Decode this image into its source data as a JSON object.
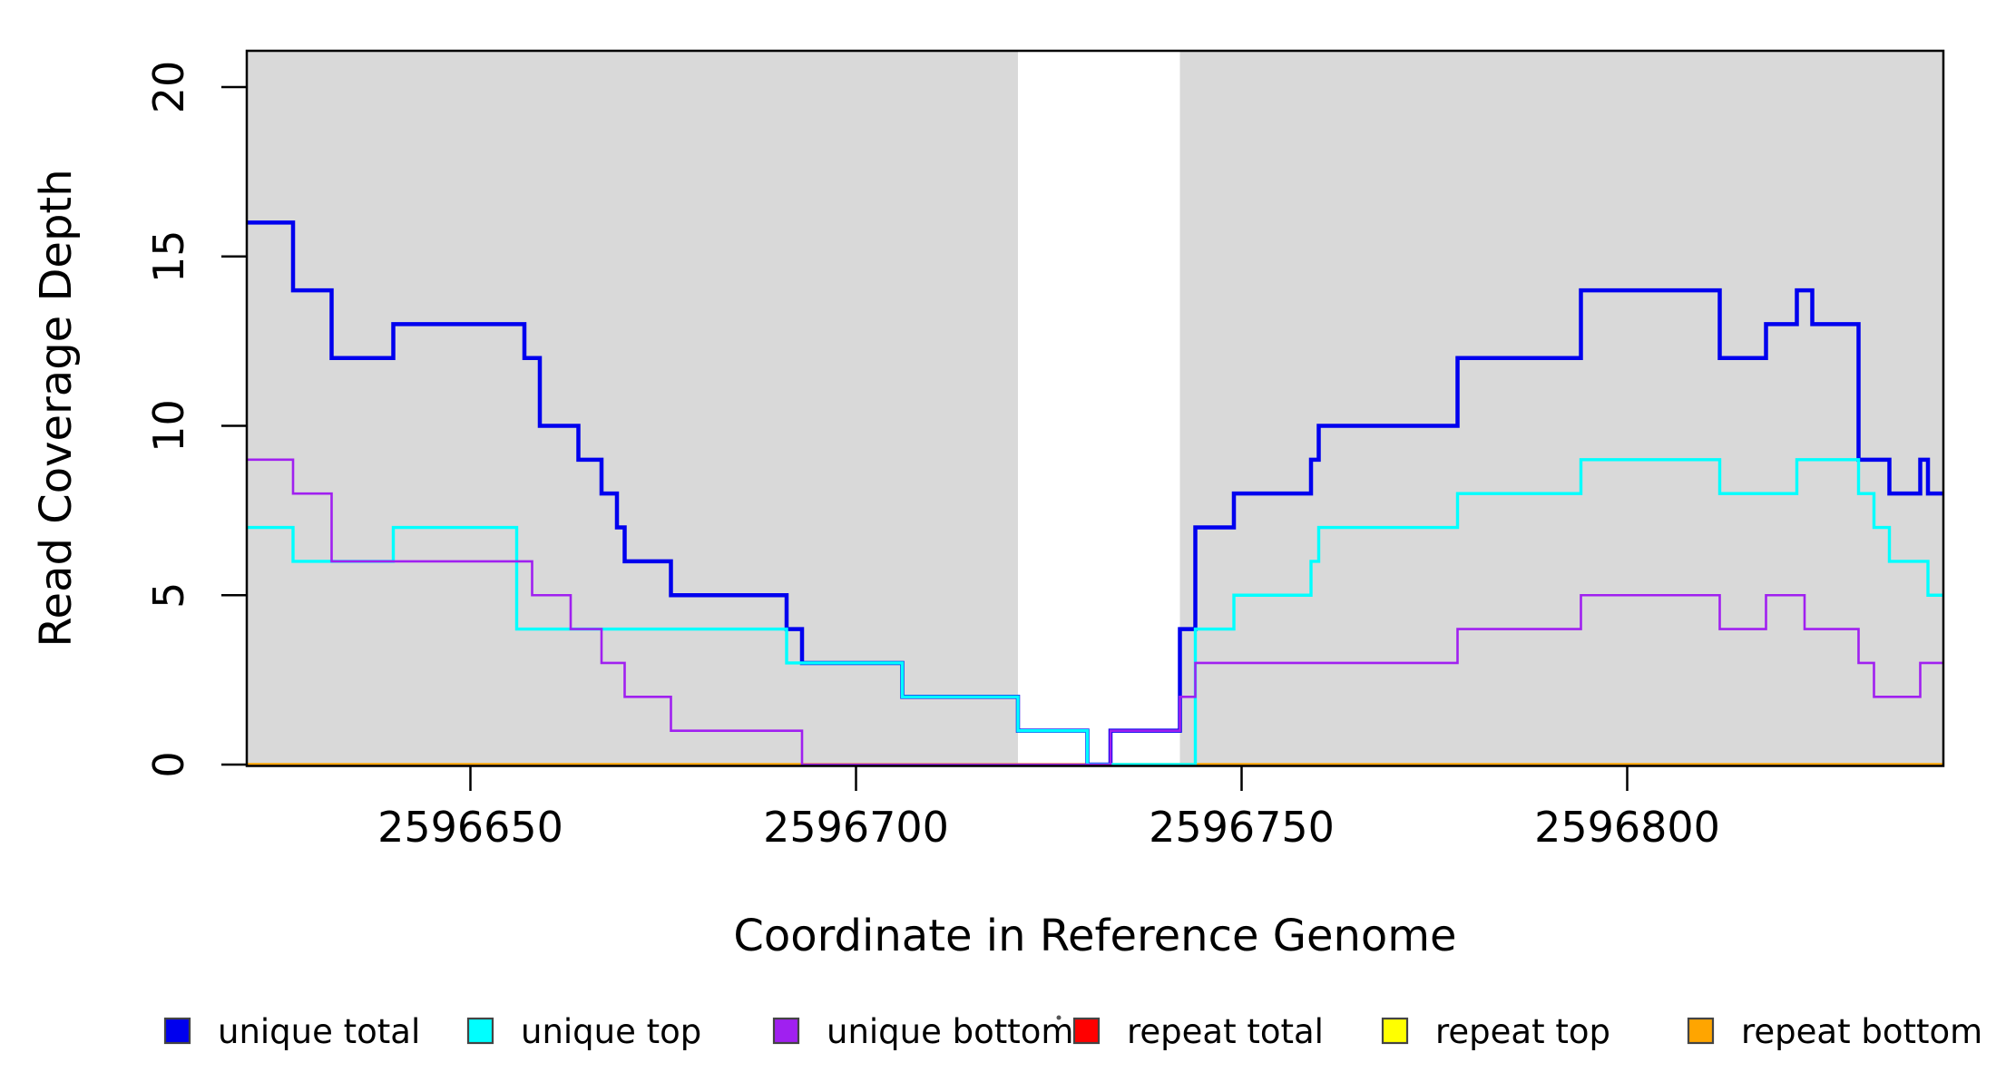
{
  "chart_data": {
    "type": "line",
    "subtype": "step-coverage",
    "title": "",
    "xlabel": "Coordinate in Reference Genome",
    "ylabel": "Read Coverage Depth",
    "xlim": [
      2596621,
      2596841
    ],
    "ylim": [
      0,
      21.07
    ],
    "x_ticks": [
      2596650,
      2596700,
      2596750,
      2596800
    ],
    "y_ticks": [
      0,
      5,
      10,
      15,
      20
    ],
    "grid": false,
    "legend_position": "bottom",
    "plot_border_color": "#000000",
    "shaded_regions": {
      "color": "#D9D9D9",
      "note": "gray highlighted genome intervals; white gap between them",
      "ranges": [
        [
          2596621,
          2596721
        ],
        [
          2596742,
          2596841
        ]
      ]
    },
    "series": [
      {
        "name": "unique total",
        "color": "#0000EE",
        "points": [
          [
            2596621,
            16
          ],
          [
            2596627,
            14
          ],
          [
            2596632,
            12
          ],
          [
            2596640,
            13
          ],
          [
            2596657,
            12
          ],
          [
            2596659,
            10
          ],
          [
            2596664,
            9
          ],
          [
            2596667,
            8
          ],
          [
            2596669,
            7
          ],
          [
            2596670,
            6
          ],
          [
            2596676,
            5
          ],
          [
            2596691,
            4
          ],
          [
            2596693,
            3
          ],
          [
            2596706,
            2
          ],
          [
            2596721,
            1
          ],
          [
            2596730,
            0
          ],
          [
            2596733,
            1
          ],
          [
            2596742,
            4
          ],
          [
            2596744,
            7
          ],
          [
            2596749,
            8
          ],
          [
            2596759,
            9
          ],
          [
            2596760,
            10
          ],
          [
            2596778,
            12
          ],
          [
            2596794,
            14
          ],
          [
            2596812,
            12
          ],
          [
            2596818,
            13
          ],
          [
            2596822,
            14
          ],
          [
            2596824,
            13
          ],
          [
            2596830,
            9
          ],
          [
            2596834,
            8
          ],
          [
            2596838,
            9
          ],
          [
            2596839,
            8
          ]
        ]
      },
      {
        "name": "unique top",
        "color": "#00FFFF",
        "points": [
          [
            2596621,
            7
          ],
          [
            2596627,
            6
          ],
          [
            2596640,
            7
          ],
          [
            2596656,
            4
          ],
          [
            2596691,
            3
          ],
          [
            2596706,
            2
          ],
          [
            2596721,
            1
          ],
          [
            2596730,
            0
          ],
          [
            2596744,
            4
          ],
          [
            2596749,
            5
          ],
          [
            2596759,
            6
          ],
          [
            2596760,
            7
          ],
          [
            2596778,
            8
          ],
          [
            2596794,
            9
          ],
          [
            2596812,
            8
          ],
          [
            2596822,
            9
          ],
          [
            2596830,
            8
          ],
          [
            2596832,
            7
          ],
          [
            2596834,
            6
          ],
          [
            2596839,
            5
          ]
        ]
      },
      {
        "name": "unique bottom",
        "color": "#A020F0",
        "points": [
          [
            2596621,
            9
          ],
          [
            2596627,
            8
          ],
          [
            2596632,
            6
          ],
          [
            2596658,
            5
          ],
          [
            2596663,
            4
          ],
          [
            2596667,
            3
          ],
          [
            2596670,
            2
          ],
          [
            2596676,
            1
          ],
          [
            2596693,
            0
          ],
          [
            2596733,
            1
          ],
          [
            2596742,
            2
          ],
          [
            2596744,
            3
          ],
          [
            2596778,
            4
          ],
          [
            2596794,
            5
          ],
          [
            2596812,
            4
          ],
          [
            2596818,
            5
          ],
          [
            2596823,
            4
          ],
          [
            2596830,
            3
          ],
          [
            2596832,
            2
          ],
          [
            2596838,
            3
          ]
        ]
      },
      {
        "name": "repeat total",
        "color": "#FF0000",
        "points": [
          [
            2596621,
            0
          ]
        ]
      },
      {
        "name": "repeat top",
        "color": "#FFFF00",
        "points": [
          [
            2596621,
            0
          ]
        ]
      },
      {
        "name": "repeat bottom",
        "color": "#FFA500",
        "points": [
          [
            2596621,
            0
          ]
        ]
      }
    ]
  }
}
